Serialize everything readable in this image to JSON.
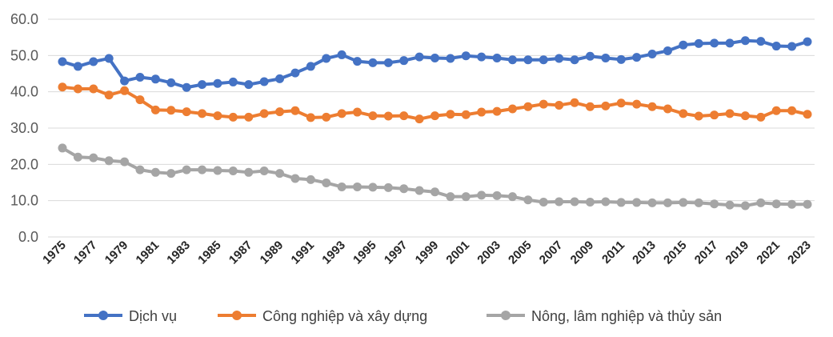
{
  "chart_data": {
    "type": "line",
    "title": "",
    "xlabel": "",
    "ylabel": "",
    "ylim": [
      0,
      60
    ],
    "yticks": [
      "0.0",
      "10.0",
      "20.0",
      "30.0",
      "40.0",
      "50.0",
      "60.0"
    ],
    "x": [
      1975,
      1976,
      1977,
      1978,
      1979,
      1980,
      1981,
      1982,
      1983,
      1984,
      1985,
      1986,
      1987,
      1988,
      1989,
      1990,
      1991,
      1992,
      1993,
      1994,
      1995,
      1996,
      1997,
      1998,
      1999,
      2000,
      2001,
      2002,
      2003,
      2004,
      2005,
      2006,
      2007,
      2008,
      2009,
      2010,
      2011,
      2012,
      2013,
      2014,
      2015,
      2016,
      2017,
      2018,
      2019,
      2020,
      2021,
      2022,
      2023
    ],
    "xtick_labels": [
      "1975",
      "1977",
      "1979",
      "1981",
      "1983",
      "1985",
      "1987",
      "1989",
      "1991",
      "1993",
      "1995",
      "1997",
      "1999",
      "2001",
      "2003",
      "2005",
      "2007",
      "2009",
      "2011",
      "2013",
      "2015",
      "2017",
      "2019",
      "2021",
      "2023"
    ],
    "grid": true,
    "legend": "bottom",
    "series": [
      {
        "name": "Dịch vụ",
        "color": "#4472C4",
        "values": [
          48.3,
          47.0,
          48.3,
          49.2,
          43.0,
          44.0,
          43.5,
          42.5,
          41.2,
          42.0,
          42.3,
          42.7,
          42.0,
          42.8,
          43.6,
          45.2,
          47.0,
          49.2,
          50.2,
          48.4,
          48.0,
          48.0,
          48.6,
          49.6,
          49.3,
          49.2,
          49.9,
          49.6,
          49.3,
          48.8,
          48.8,
          48.8,
          49.2,
          48.8,
          49.8,
          49.3,
          48.9,
          49.5,
          50.4,
          51.3,
          52.9,
          53.3,
          53.4,
          53.4,
          54.1,
          53.9,
          52.6,
          52.5,
          53.8
        ]
      },
      {
        "name": "Công nghiệp và xây dựng",
        "color": "#ED7D31",
        "values": [
          41.3,
          40.8,
          40.8,
          39.1,
          40.3,
          37.8,
          35.0,
          34.9,
          34.5,
          34.0,
          33.4,
          33.0,
          33.0,
          34.0,
          34.5,
          34.8,
          32.9,
          33.0,
          34.0,
          34.4,
          33.4,
          33.3,
          33.4,
          32.5,
          33.4,
          33.8,
          33.7,
          34.4,
          34.6,
          35.3,
          35.9,
          36.6,
          36.3,
          37.0,
          35.9,
          36.1,
          36.9,
          36.6,
          35.9,
          35.3,
          34.0,
          33.3,
          33.6,
          34.0,
          33.4,
          33.0,
          34.8,
          34.8,
          33.8
        ]
      },
      {
        "name": "Nông, lâm nghiệp và thủy sản",
        "color": "#A5A5A5",
        "values": [
          24.5,
          22.0,
          21.8,
          21.0,
          20.7,
          18.5,
          17.8,
          17.5,
          18.5,
          18.5,
          18.3,
          18.2,
          17.8,
          18.2,
          17.5,
          16.1,
          15.8,
          14.9,
          13.8,
          13.8,
          13.7,
          13.6,
          13.3,
          12.8,
          12.4,
          11.1,
          11.1,
          11.5,
          11.4,
          11.1,
          10.2,
          9.6,
          9.7,
          9.7,
          9.6,
          9.7,
          9.5,
          9.5,
          9.4,
          9.4,
          9.5,
          9.4,
          9.1,
          8.8,
          8.6,
          9.4,
          9.1,
          9.0,
          9.0
        ]
      }
    ]
  }
}
